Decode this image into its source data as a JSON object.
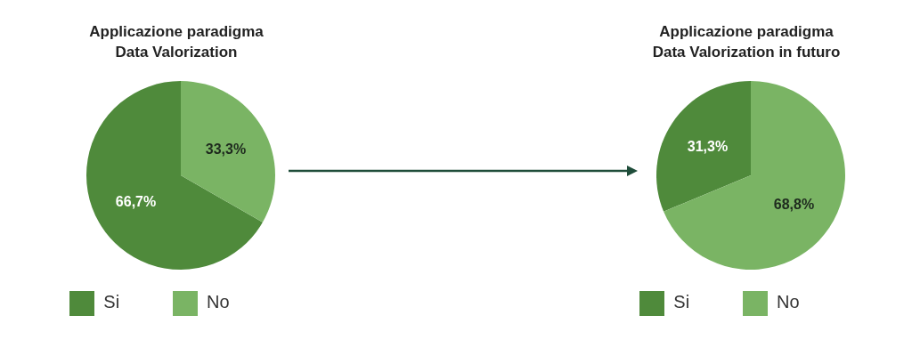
{
  "chart_data": [
    {
      "type": "pie",
      "title": "Applicazione paradigma\nData Valorization",
      "categories": [
        "Si",
        "No"
      ],
      "values": [
        66.7,
        33.3
      ],
      "colors": [
        "#4f8a3b",
        "#7ab464"
      ],
      "value_labels": [
        "66,7%",
        "33,3%"
      ],
      "legend": "bottom"
    },
    {
      "type": "pie",
      "title": "Applicazione paradigma\nData Valorization in futuro",
      "categories": [
        "Si",
        "No"
      ],
      "values": [
        31.3,
        68.8
      ],
      "colors": [
        "#4f8a3b",
        "#7ab464"
      ],
      "value_labels": [
        "31,3%",
        "68,8%"
      ],
      "legend": "bottom"
    }
  ]
}
